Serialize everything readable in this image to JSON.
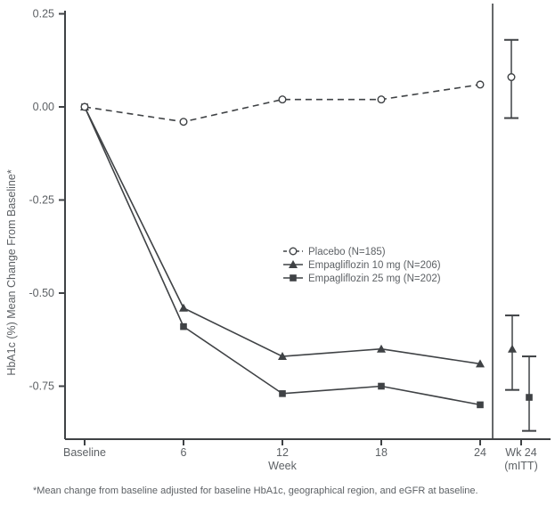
{
  "chart_data": {
    "type": "line",
    "title": "",
    "ylabel": "HbA1c (%) Mean Change From Baseline*",
    "xlabel": "Week",
    "categories": [
      "Baseline",
      "6",
      "12",
      "18",
      "24"
    ],
    "y_ticks": [
      "0.25",
      "0.00",
      "-0.25",
      "-0.50",
      "-0.75"
    ],
    "y_tick_values": [
      0.25,
      0.0,
      -0.25,
      -0.5,
      -0.75
    ],
    "ylim": [
      -0.95,
      0.25
    ],
    "grid": false,
    "legend_position": "center-right",
    "wk24_column": {
      "line1": "Wk 24",
      "line2": "(mITT)"
    },
    "series": [
      {
        "name": "Placebo (N=185)",
        "line_style": "dashed",
        "marker": "open-circle",
        "values": [
          0.0,
          -0.04,
          0.02,
          0.02,
          0.06
        ],
        "wk24_mitt": {
          "mean": 0.08,
          "ci_low": -0.03,
          "ci_high": 0.18
        }
      },
      {
        "name": "Empagliflozin 10 mg (N=206)",
        "line_style": "solid",
        "marker": "filled-triangle",
        "values": [
          0.0,
          -0.54,
          -0.67,
          -0.65,
          -0.69
        ],
        "wk24_mitt": {
          "mean": -0.65,
          "ci_low": -0.76,
          "ci_high": -0.56
        }
      },
      {
        "name": "Empagliflozin 25 mg (N=202)",
        "line_style": "solid",
        "marker": "filled-square",
        "values": [
          0.0,
          -0.59,
          -0.77,
          -0.75,
          -0.8
        ],
        "wk24_mitt": {
          "mean": -0.78,
          "ci_low": -0.87,
          "ci_high": -0.67
        }
      }
    ],
    "footnote": "*Mean change from baseline adjusted for baseline HbA1c, geographical region, and eGFR at baseline.",
    "colors": {
      "line": "#3f4245",
      "text": "#5d6165",
      "background": "#ffffff"
    }
  }
}
